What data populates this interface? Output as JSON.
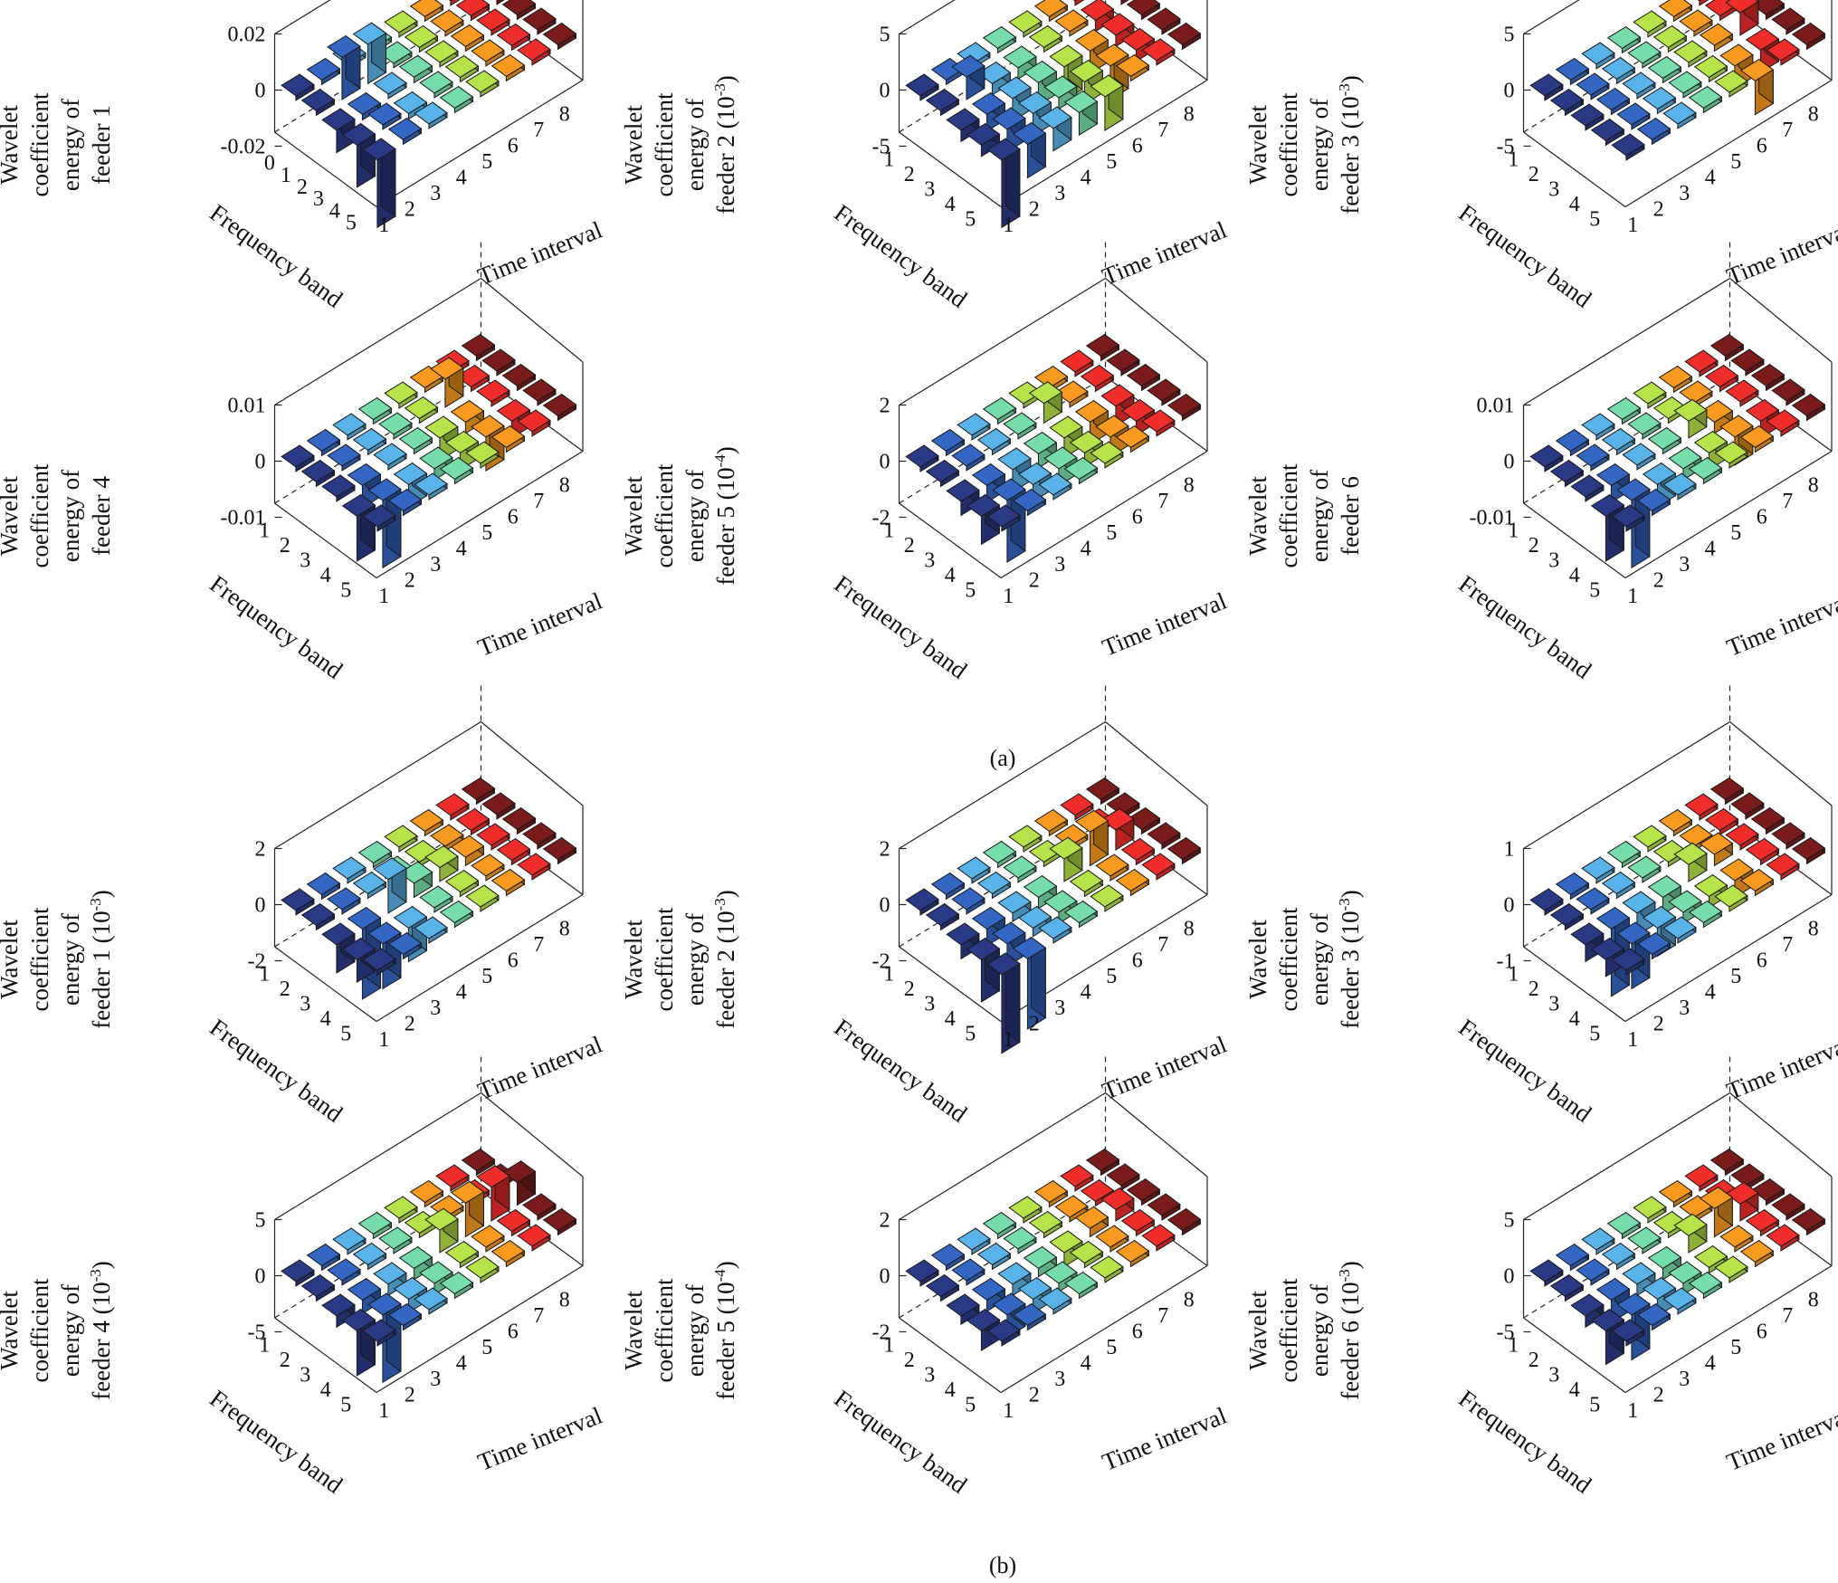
{
  "figure": {
    "panel_captions": [
      "(a)",
      "(b)"
    ]
  },
  "common": {
    "xlabel": "Time interval",
    "ylabel": "Frequency band",
    "time_ticks": [
      "1",
      "2",
      "3",
      "4",
      "5",
      "6",
      "7",
      "8"
    ],
    "band_ticks": [
      "1",
      "2",
      "3",
      "4",
      "5"
    ],
    "band_colors": [
      "#2b3a86",
      "#3466c4",
      "#5ab3e8",
      "#76dca9",
      "#b7e34a",
      "#f79a1f",
      "#ef2d2a",
      "#7a1c1c"
    ]
  },
  "chart_data": [
    {
      "type": "bar3d",
      "panel": "(a)",
      "id": "a1",
      "zlabel_lines": [
        "Wavelet",
        "coefficient",
        "energy of",
        "feeder 1"
      ],
      "zlabel_exp": "",
      "zlim": [
        -0.02,
        0.02
      ],
      "zticks": [
        "0.02",
        "0",
        "-0.02"
      ],
      "band_tick_labels": [
        "0",
        "1",
        "2",
        "3",
        "4",
        "5"
      ],
      "values": [
        [
          0,
          0,
          0,
          0,
          0,
          0,
          0,
          0
        ],
        [
          0,
          0.015,
          0.014,
          0,
          0,
          0,
          0,
          0
        ],
        [
          -0.008,
          -0.002,
          -0.001,
          0.002,
          0,
          0,
          0,
          0
        ],
        [
          -0.015,
          0,
          -0.002,
          0.001,
          0.001,
          0.001,
          0,
          0
        ],
        [
          -0.024,
          0,
          0,
          0,
          0,
          0,
          0,
          0
        ]
      ]
    },
    {
      "type": "bar3d",
      "panel": "(a)",
      "id": "a2",
      "zlabel_lines": [
        "Wavelet",
        "coefficient",
        "energy of",
        "feeder 2 (10"
      ],
      "zlabel_exp": "-3",
      "zlim": [
        -5,
        5
      ],
      "zticks": [
        "5",
        "0",
        "-5"
      ],
      "band_tick_labels": [
        "1",
        "2",
        "3",
        "4",
        "5"
      ],
      "values": [
        [
          0,
          0,
          0,
          0,
          0,
          0,
          0,
          0
        ],
        [
          0,
          2,
          -1,
          -1,
          0,
          0,
          -1,
          0
        ],
        [
          -1,
          -1.5,
          -2,
          -2,
          -3,
          -2,
          -1,
          0
        ],
        [
          -1,
          -2,
          -2,
          -1,
          -2,
          -3,
          -1,
          0
        ],
        [
          -6,
          -3,
          -2,
          -2,
          -3,
          0,
          0,
          0
        ]
      ]
    },
    {
      "type": "bar3d",
      "panel": "(a)",
      "id": "a3",
      "zlabel_lines": [
        "Wavelet",
        "coefficient",
        "energy of",
        "feeder 3 (10"
      ],
      "zlabel_exp": "-3",
      "zlim": [
        -5,
        5
      ],
      "zticks": [
        "5",
        "0",
        "-5"
      ],
      "band_tick_labels": [
        "1",
        "2",
        "3",
        "4",
        "5"
      ],
      "values": [
        [
          0,
          0,
          0,
          0,
          0,
          0,
          0,
          0
        ],
        [
          0,
          0,
          0,
          0,
          0,
          0,
          0,
          0
        ],
        [
          0,
          0,
          0,
          0,
          0,
          0.5,
          2,
          0
        ],
        [
          0,
          0,
          0,
          0,
          0,
          -2,
          -2,
          0
        ],
        [
          0,
          0,
          0,
          0,
          0,
          -3,
          0,
          0
        ]
      ]
    },
    {
      "type": "bar3d",
      "panel": "(a)",
      "id": "a4",
      "zlabel_lines": [
        "Wavelet",
        "coefficient",
        "energy of",
        "feeder 4"
      ],
      "zlabel_exp": "",
      "zlim": [
        -0.01,
        0.01
      ],
      "zticks": [
        "0.01",
        "0",
        "-0.01"
      ],
      "band_tick_labels": [
        "1",
        "2",
        "3",
        "4",
        "5"
      ],
      "values": [
        [
          0,
          0,
          0,
          0,
          0,
          0,
          0,
          0
        ],
        [
          0,
          0,
          0,
          0,
          0,
          0.005,
          0,
          0
        ],
        [
          0,
          -0.004,
          0,
          0,
          -0.004,
          -0.002,
          0,
          0
        ],
        [
          -0.008,
          -0.012,
          -0.004,
          -0.002,
          -0.003,
          -0.006,
          -0.003,
          0
        ],
        [
          0,
          0,
          0,
          0,
          0,
          0,
          0,
          0
        ]
      ]
    },
    {
      "type": "bar3d",
      "panel": "(a)",
      "id": "a5",
      "zlabel_lines": [
        "Wavelet",
        "coefficient",
        "energy of",
        "feeder 5 (10"
      ],
      "zlabel_exp": "-4",
      "zlim": [
        -2,
        2
      ],
      "zticks": [
        "2",
        "0",
        "-2"
      ],
      "band_tick_labels": [
        "1",
        "2",
        "3",
        "4",
        "5"
      ],
      "values": [
        [
          0,
          0,
          0,
          0,
          0,
          0,
          0,
          0
        ],
        [
          0,
          0,
          0,
          0,
          0.7,
          0,
          0,
          0
        ],
        [
          -0.5,
          -0.6,
          -0.8,
          -0.5,
          -0.7,
          -0.8,
          -0.7,
          0
        ],
        [
          -1,
          -2.2,
          -0.6,
          -0.6,
          -0.5,
          -0.7,
          -0.5,
          0
        ],
        [
          0,
          0,
          0,
          0,
          0,
          0,
          0,
          0
        ]
      ]
    },
    {
      "type": "bar3d",
      "panel": "(a)",
      "id": "a6",
      "zlabel_lines": [
        "Wavelet",
        "coefficient",
        "energy of",
        "feeder 6"
      ],
      "zlabel_exp": "",
      "zlim": [
        -0.01,
        0.01
      ],
      "zticks": [
        "0.01",
        "0",
        "-0.01"
      ],
      "band_tick_labels": [
        "1",
        "2",
        "3",
        "4",
        "5"
      ],
      "values": [
        [
          0,
          0,
          0,
          0,
          0,
          0,
          0,
          0
        ],
        [
          0,
          0,
          0,
          0,
          0,
          0,
          0,
          0
        ],
        [
          0,
          -0.003,
          0,
          0,
          0.003,
          -0.002,
          0,
          0
        ],
        [
          -0.008,
          -0.012,
          -0.004,
          -0.002,
          -0.003,
          -0.005,
          -0.003,
          0
        ],
        [
          0,
          0,
          0,
          0,
          0,
          0,
          0,
          0
        ]
      ]
    },
    {
      "type": "bar3d",
      "panel": "(b)",
      "id": "b1",
      "zlabel_lines": [
        "Wavelet",
        "coefficient",
        "energy of",
        "feeder 1 (10"
      ],
      "zlabel_exp": "-3",
      "zlim": [
        -2,
        2
      ],
      "zticks": [
        "2",
        "0",
        "-2"
      ],
      "band_tick_labels": [
        "1",
        "2",
        "3",
        "4",
        "5"
      ],
      "values": [
        [
          0,
          0,
          0,
          0,
          0,
          0,
          0,
          0
        ],
        [
          0,
          0,
          0,
          0,
          0,
          0,
          0,
          0
        ],
        [
          -1,
          -2.5,
          1.2,
          0.5,
          0.5,
          0.3,
          0,
          0
        ],
        [
          -0.8,
          -1.6,
          -1.2,
          0,
          0,
          0,
          0,
          0
        ],
        [
          0,
          0,
          0,
          0,
          0,
          0,
          0,
          0
        ]
      ]
    },
    {
      "type": "bar3d",
      "panel": "(b)",
      "id": "b2",
      "zlabel_lines": [
        "Wavelet",
        "coefficient",
        "energy of",
        "feeder 2 (10"
      ],
      "zlabel_exp": "-3",
      "zlim": [
        -2,
        2
      ],
      "zticks": [
        "2",
        "0",
        "-2"
      ],
      "band_tick_labels": [
        "1",
        "2",
        "3",
        "4",
        "5"
      ],
      "values": [
        [
          0,
          0,
          0,
          0,
          0,
          0,
          0,
          0
        ],
        [
          0,
          0,
          0,
          0,
          0,
          0,
          0,
          0
        ],
        [
          -0.5,
          -0.6,
          -0.3,
          -0.4,
          0.8,
          1.2,
          0.7,
          0
        ],
        [
          -1.5,
          -0.8,
          -0.3,
          -0.4,
          0,
          0,
          0,
          0
        ],
        [
          -3,
          -2.5,
          0,
          0,
          0,
          0,
          0,
          0
        ]
      ]
    },
    {
      "type": "bar3d",
      "panel": "(b)",
      "id": "b3",
      "zlabel_lines": [
        "Wavelet",
        "coefficient",
        "energy of",
        "feeder 3 (10"
      ],
      "zlabel_exp": "-3",
      "zlim": [
        -1,
        1
      ],
      "zticks": [
        "1",
        "0",
        "-1"
      ],
      "band_tick_labels": [
        "1",
        "2",
        "3",
        "4",
        "5"
      ],
      "values": [
        [
          0,
          0,
          0,
          0,
          0,
          0,
          0,
          0
        ],
        [
          0,
          0,
          0,
          0,
          0,
          0,
          0,
          0
        ],
        [
          -0.3,
          -1.2,
          -0.4,
          -0.3,
          0.3,
          0.2,
          0,
          0
        ],
        [
          -0.3,
          -0.8,
          -0.5,
          -0.2,
          -0.2,
          -0.3,
          0,
          0
        ],
        [
          0,
          0,
          0,
          0,
          0,
          0,
          0,
          0
        ]
      ]
    },
    {
      "type": "bar3d",
      "panel": "(b)",
      "id": "b4",
      "zlabel_lines": [
        "Wavelet",
        "coefficient",
        "energy of",
        "feeder 4 (10"
      ],
      "zlabel_exp": "-3",
      "zlim": [
        -5,
        5
      ],
      "zticks": [
        "5",
        "0",
        "-5"
      ],
      "band_tick_labels": [
        "1",
        "2",
        "3",
        "4",
        "5"
      ],
      "values": [
        [
          0,
          0,
          0,
          0,
          0,
          0,
          0,
          0
        ],
        [
          0,
          0,
          0,
          0,
          0,
          0,
          0,
          0
        ],
        [
          -1,
          -1.2,
          -1,
          -1,
          2,
          3,
          3,
          2
        ],
        [
          -4,
          -6,
          -1.2,
          -1,
          0,
          0,
          0,
          0
        ],
        [
          0,
          0,
          0,
          0,
          0,
          0,
          0,
          0
        ]
      ]
    },
    {
      "type": "bar3d",
      "panel": "(b)",
      "id": "b5",
      "zlabel_lines": [
        "Wavelet",
        "coefficient",
        "energy of",
        "feeder 5 (10"
      ],
      "zlabel_exp": "-4",
      "zlim": [
        -2,
        2
      ],
      "zticks": [
        "2",
        "0",
        "-2"
      ],
      "band_tick_labels": [
        "1",
        "2",
        "3",
        "4",
        "5"
      ],
      "values": [
        [
          0,
          0,
          0,
          0,
          0,
          0,
          0,
          0
        ],
        [
          0,
          0,
          0,
          0,
          0,
          0,
          0,
          0
        ],
        [
          -0.3,
          -0.4,
          -0.4,
          -0.3,
          -0.5,
          0.3,
          0.4,
          0
        ],
        [
          -0.7,
          -0.8,
          -0.5,
          -0.3,
          0,
          0,
          0,
          0
        ],
        [
          0,
          0,
          0,
          0,
          0,
          0,
          0,
          0
        ]
      ]
    },
    {
      "type": "bar3d",
      "panel": "(b)",
      "id": "b6",
      "zlabel_lines": [
        "Wavelet",
        "coefficient",
        "energy of",
        "feeder 6 (10"
      ],
      "zlabel_exp": "-3",
      "zlim": [
        -5,
        5
      ],
      "zticks": [
        "5",
        "0",
        "-5"
      ],
      "band_tick_labels": [
        "1",
        "2",
        "3",
        "4",
        "5"
      ],
      "values": [
        [
          0,
          0,
          0,
          0,
          0,
          0,
          0,
          0
        ],
        [
          0,
          0,
          0,
          0,
          0,
          0,
          0,
          0
        ],
        [
          -1,
          -2,
          -1,
          -1,
          1.5,
          2.5,
          1.5,
          0
        ],
        [
          -3,
          -4,
          -1.5,
          -1,
          -0.5,
          0,
          0,
          0
        ],
        [
          0,
          0,
          0,
          0,
          0,
          0,
          0,
          0
        ]
      ]
    }
  ]
}
